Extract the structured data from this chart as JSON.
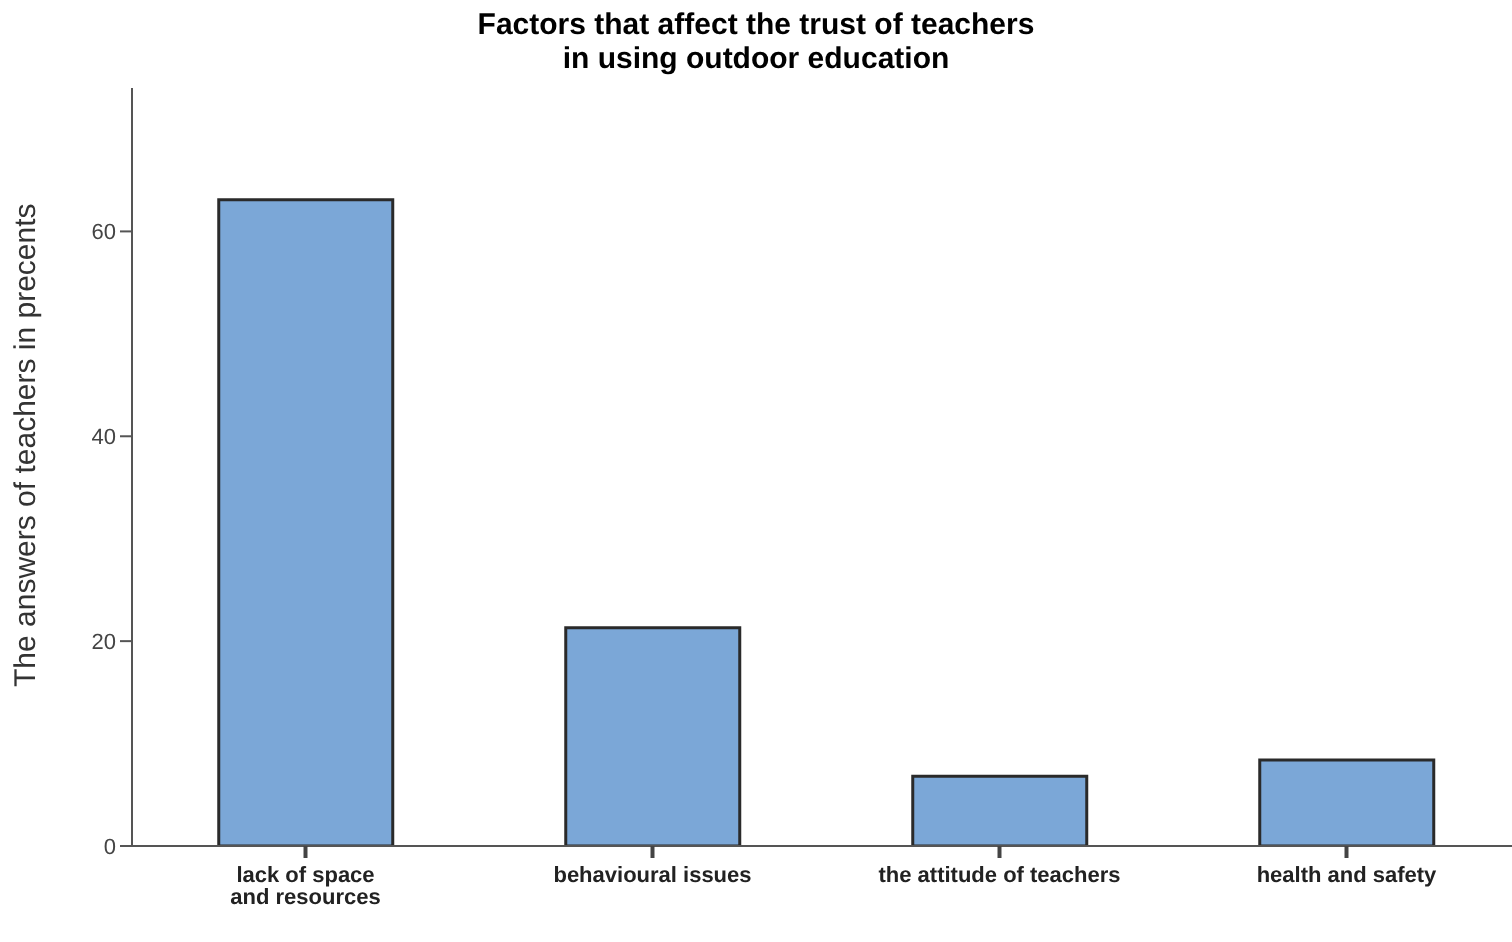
{
  "chart_data": {
    "type": "bar",
    "title": "Factors that affect the trust of teachers\nin using outdoor education",
    "ylabel": "The answers of teachers in precents",
    "categories": [
      "lack of space\nand resources",
      "behavioural issues",
      "the attitude of teachers",
      "health and safety"
    ],
    "values": [
      63.1,
      21.3,
      6.8,
      8.4
    ],
    "color": "#7ba7d7",
    "ylim": [
      0,
      74
    ],
    "yticks": [
      0,
      20,
      40,
      60
    ],
    "grid": false
  }
}
